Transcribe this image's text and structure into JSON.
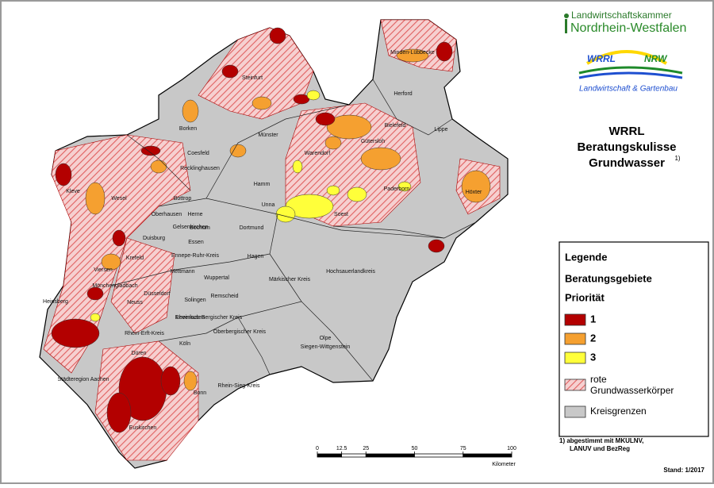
{
  "logo": {
    "org_line1": "Landwirtschaftskammer",
    "org_line2": "Nordrhein-Westfalen",
    "wrrl": "WRRL",
    "nrw": "NRW",
    "tagline": "Landwirtschaft & Gartenbau"
  },
  "title": {
    "line1": "WRRL",
    "line2": "Beratungskulisse",
    "line3": "Grundwasser",
    "footnote_mark": "1)"
  },
  "legend": {
    "heading": "Legende",
    "subheading": "Beratungsgebiete",
    "priority": "Priorität",
    "items": [
      {
        "label": "1",
        "color": "#b30000"
      },
      {
        "label": "2",
        "color": "#f5a030"
      },
      {
        "label": "3",
        "color": "#ffff3a"
      },
      {
        "label": "rote Grundwasserkörper",
        "color": "hatch"
      },
      {
        "label": "Kreisgrenzen",
        "color": "#c8c8c8"
      }
    ]
  },
  "footnote": {
    "line1": "1) abgestimmt mit MKULNV,",
    "line2": "LANUV und BezReg"
  },
  "stand": "Stand: 1/2017",
  "scale_bar": {
    "ticks": [
      0,
      12.5,
      25,
      50,
      75,
      100
    ],
    "unit": "Kilometer"
  },
  "districts": [
    "Minden-Lübbecke",
    "Herford",
    "Lippe",
    "Bielefeld",
    "Gütersloh",
    "Steinfurt",
    "Borken",
    "Coesfeld",
    "Münster",
    "Warendorf",
    "Höxter",
    "Paderborn",
    "Soest",
    "Hamm",
    "Unna",
    "Wesel",
    "Kleve",
    "Recklinghausen",
    "Bottrop",
    "Gelsenkirchen",
    "Herne",
    "Bochum",
    "Dortmund",
    "Essen",
    "Duisburg",
    "Oberhausen",
    "Krefeld",
    "Hagen",
    "Ennepe-Ruhr-Kreis",
    "Mettmann",
    "Wuppertal",
    "Märkischer Kreis",
    "Hochsauerlandkreis",
    "Viersen",
    "Mönchengladbach",
    "Neuss",
    "Düsseldorf",
    "Solingen",
    "Remscheid",
    "Rheinisch-Bergischer Kreis",
    "Oberbergischer Kreis",
    "Olpe",
    "Siegen-Wittgenstein",
    "Köln",
    "Rhein-Erft-Kreis",
    "Heinsberg",
    "Städteregion Aachen",
    "Düren",
    "Euskirchen",
    "Bonn",
    "Rhein-Sieg-Kreis",
    "Leverkusen"
  ]
}
